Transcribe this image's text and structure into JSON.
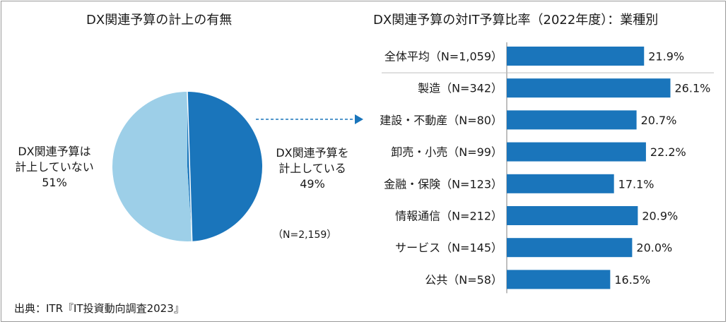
{
  "left_chart": {
    "title": "DX関連予算の計上の有無",
    "sample_note": "（N=2,159）"
  },
  "right_chart": {
    "title": "DX関連予算の対IT予算比率（2022年度）：業種別"
  },
  "source": "出典：ITR『IT投資動向調査2023』",
  "colors": {
    "pie_yes": "#1a75bb",
    "pie_no": "#9dcfe8",
    "bar": "#1a75bb",
    "arrow": "#1a75bb",
    "divider": "#bfbfbf"
  },
  "chart_data": [
    {
      "type": "pie",
      "title": "DX関連予算の計上の有無",
      "slices": [
        {
          "label": "DX関連予算を計上している",
          "label_lines": [
            "DX関連予算を",
            "計上している",
            "49%"
          ],
          "value": 49
        },
        {
          "label": "DX関連予算は計上していない",
          "label_lines": [
            "DX関連予算は",
            "計上していない",
            "51%"
          ],
          "value": 51
        }
      ]
    },
    {
      "type": "bar",
      "orientation": "horizontal",
      "title": "DX関連予算の対IT予算比率（2022年度）：業種別",
      "xlim": [
        0,
        28
      ],
      "grid": false,
      "categories": [
        "全体平均（N=1,059）",
        "製造（N=342）",
        "建設・不動産（N=80）",
        "卸売・小売（N=99）",
        "金融・保険（N=123）",
        "情報通信（N=212）",
        "サービス（N=145）",
        "公共（N=58）"
      ],
      "values": [
        21.9,
        26.1,
        20.7,
        22.2,
        17.1,
        20.9,
        20.0,
        16.5
      ],
      "value_labels": [
        "21.9%",
        "26.1%",
        "20.7%",
        "22.2%",
        "17.1%",
        "20.9%",
        "20.0%",
        "16.5%"
      ]
    }
  ]
}
